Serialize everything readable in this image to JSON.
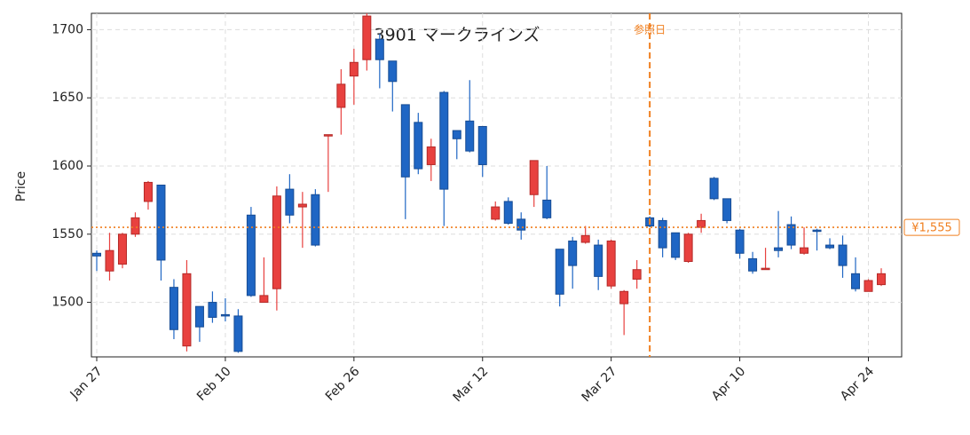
{
  "chart_data": {
    "type": "candlestick",
    "title": "3901  マークラインズ",
    "y_label": "Price",
    "categories": [
      "Jan 27",
      null,
      null,
      null,
      null,
      null,
      null,
      null,
      null,
      null,
      "Feb 10",
      null,
      null,
      null,
      null,
      null,
      null,
      null,
      null,
      null,
      "Feb 26",
      null,
      null,
      null,
      null,
      null,
      null,
      null,
      null,
      null,
      "Mar 12",
      null,
      null,
      null,
      null,
      null,
      null,
      null,
      null,
      null,
      "Mar 27",
      null,
      null,
      null,
      null,
      null,
      null,
      null,
      null,
      null,
      "Apr 10",
      null,
      null,
      null,
      null,
      null,
      null,
      null,
      null,
      null,
      "Apr 24",
      null
    ],
    "open": [
      1536,
      1523,
      1528,
      1550,
      1574,
      1586,
      1511,
      1468,
      1497,
      1500,
      1491,
      1490,
      1564,
      1500,
      1510,
      1583,
      1570,
      1579,
      1622,
      1643,
      1666,
      1678,
      1693,
      1677,
      1645,
      1632,
      1601,
      1654,
      1626,
      1633,
      1629,
      1561,
      1574,
      1561,
      1579,
      1575,
      1539,
      1545,
      1544,
      1542,
      1512,
      1499,
      1517,
      1562,
      1560,
      1551,
      1530,
      1555,
      1591,
      1576,
      1553,
      1532,
      1524,
      1540,
      1557,
      1536,
      1553,
      1542,
      1542,
      1521,
      1508,
      1513
    ],
    "high": [
      1538,
      1551,
      1551,
      1566,
      1589,
      1586,
      1517,
      1531,
      1497,
      1508,
      1503,
      1495,
      1570,
      1533,
      1585,
      1594,
      1581,
      1583,
      1623,
      1671,
      1686,
      1712,
      1697,
      1677,
      1645,
      1639,
      1620,
      1655,
      1626,
      1663,
      1629,
      1574,
      1577,
      1566,
      1604,
      1600,
      1539,
      1548,
      1556,
      1546,
      1546,
      1509,
      1531,
      1563,
      1562,
      1551,
      1551,
      1565,
      1592,
      1576,
      1554,
      1537,
      1540,
      1567,
      1563,
      1555,
      1554,
      1547,
      1549,
      1533,
      1517,
      1525
    ],
    "low": [
      1523,
      1516,
      1525,
      1548,
      1568,
      1516,
      1473,
      1464,
      1471,
      1485,
      1486,
      1463,
      1504,
      1500,
      1494,
      1558,
      1540,
      1541,
      1581,
      1623,
      1645,
      1670,
      1657,
      1640,
      1561,
      1594,
      1589,
      1556,
      1605,
      1610,
      1592,
      1560,
      1557,
      1546,
      1570,
      1561,
      1497,
      1510,
      1543,
      1509,
      1510,
      1476,
      1510,
      1555,
      1533,
      1531,
      1529,
      1551,
      1575,
      1558,
      1532,
      1521,
      1524,
      1533,
      1539,
      1535,
      1538,
      1539,
      1518,
      1508,
      1508,
      1512
    ],
    "close": [
      1534,
      1538,
      1550,
      1562,
      1588,
      1531,
      1480,
      1521,
      1482,
      1489,
      1490,
      1464,
      1505,
      1505,
      1578,
      1564,
      1572,
      1542,
      1623,
      1660,
      1676,
      1710,
      1678,
      1662,
      1592,
      1598,
      1614,
      1583,
      1620,
      1611,
      1601,
      1570,
      1558,
      1553,
      1604,
      1562,
      1506,
      1527,
      1549,
      1519,
      1545,
      1508,
      1524,
      1556,
      1540,
      1533,
      1550,
      1560,
      1576,
      1560,
      1536,
      1523,
      1525,
      1538,
      1542,
      1540,
      1552,
      1540,
      1527,
      1510,
      1516,
      1521
    ],
    "up_color": "#e8413f",
    "down_color": "#1f66c4",
    "ylim": [
      1460,
      1712
    ],
    "yticks": [
      1500,
      1550,
      1600,
      1650,
      1700
    ],
    "grid": true,
    "reference": {
      "index": 43,
      "label": "参照日",
      "color": "#f07f1f"
    },
    "hline": {
      "value": 1555,
      "label": "¥1,555",
      "color": "#f07f1f"
    }
  }
}
